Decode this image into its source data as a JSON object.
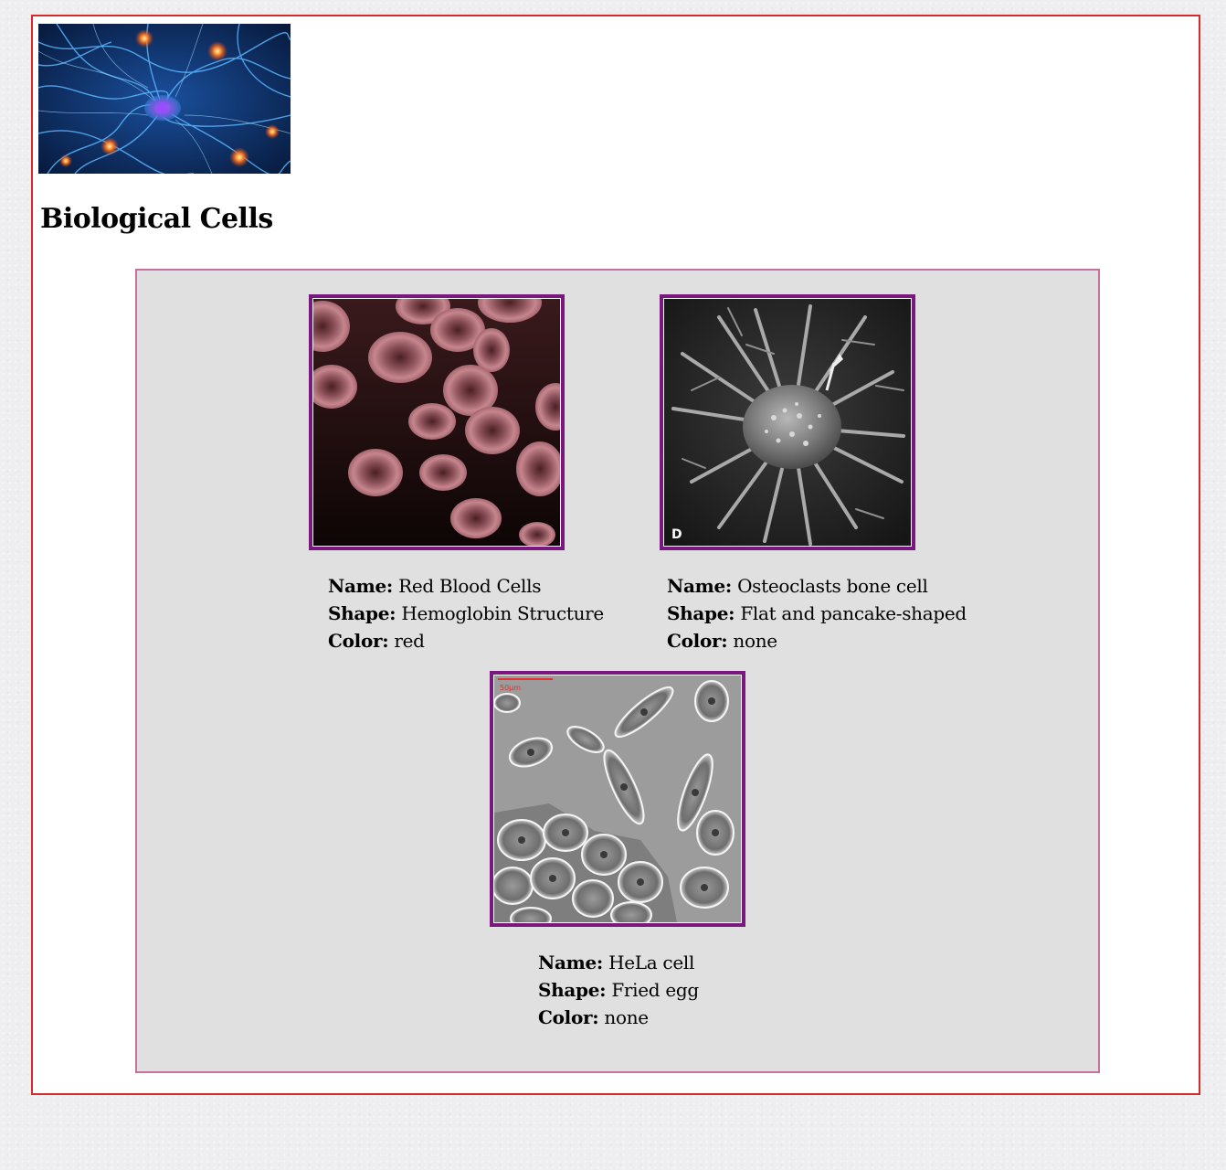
{
  "page": {
    "title": "Biological Cells",
    "banner_icon": "neuron-network-image"
  },
  "colors": {
    "frame_border": "#d42a2a",
    "gallery_border": "#c8709e",
    "gallery_background": "#e0e0e0",
    "photo_border": "#7b1880"
  },
  "labels": {
    "name": "Name:",
    "shape": "Shape:",
    "color": "Color:"
  },
  "cells": [
    {
      "name": "Red Blood Cells",
      "shape": "Hemoglobin Structure",
      "color": "red",
      "image_icon": "red-blood-cells-micrograph"
    },
    {
      "name": "Osteoclasts bone cell",
      "shape": "Flat and pancake-shaped",
      "color": "none",
      "image_icon": "osteoclast-micrograph"
    },
    {
      "name": "HeLa cell",
      "shape": "Fried egg",
      "color": "none",
      "image_icon": "hela-cell-micrograph"
    }
  ]
}
